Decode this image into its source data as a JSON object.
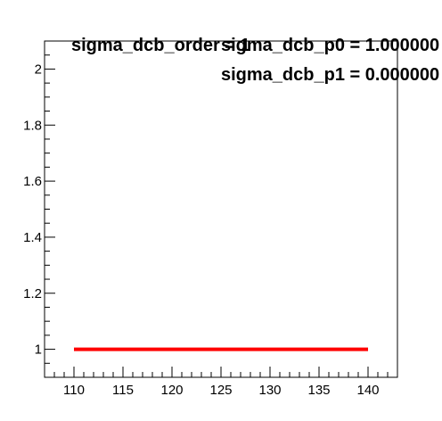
{
  "chart_data": {
    "type": "line",
    "title": "",
    "xlabel": "",
    "ylabel": "",
    "xlim": [
      107,
      143
    ],
    "ylim": [
      0.9,
      2.1
    ],
    "grid": false,
    "legend": "none",
    "x_ticks_major": [
      110,
      115,
      120,
      125,
      130,
      135,
      140
    ],
    "x_ticks_minor": [
      107,
      108,
      109,
      111,
      112,
      113,
      114,
      116,
      117,
      118,
      119,
      121,
      122,
      123,
      124,
      126,
      127,
      128,
      129,
      131,
      132,
      133,
      134,
      136,
      137,
      138,
      139,
      141,
      142
    ],
    "x_tick_labels": [
      "110",
      "115",
      "120",
      "125",
      "130",
      "135",
      "140"
    ],
    "y_ticks_major": [
      1,
      1.2,
      1.4,
      1.6,
      1.8,
      2
    ],
    "y_ticks_minor": [
      0.9,
      0.95,
      1.05,
      1.1,
      1.15,
      1.25,
      1.3,
      1.35,
      1.45,
      1.5,
      1.55,
      1.65,
      1.7,
      1.75,
      1.85,
      1.9,
      1.95,
      2.05
    ],
    "y_tick_labels": [
      "1",
      "1.2",
      "1.4",
      "1.6",
      "1.8",
      "2"
    ],
    "series": [
      {
        "x": [
          110,
          140
        ],
        "y": [
          1,
          1
        ],
        "color": "#ff0000"
      }
    ],
    "annotations": [
      "sigma_dcb_order = 1",
      "sigma_dcb_p0 = 1.000000",
      "sigma_dcb_p1 = 0.000000"
    ]
  },
  "colors": {
    "line": "#ff0000",
    "axis": "#000000",
    "background": "#ffffff"
  }
}
